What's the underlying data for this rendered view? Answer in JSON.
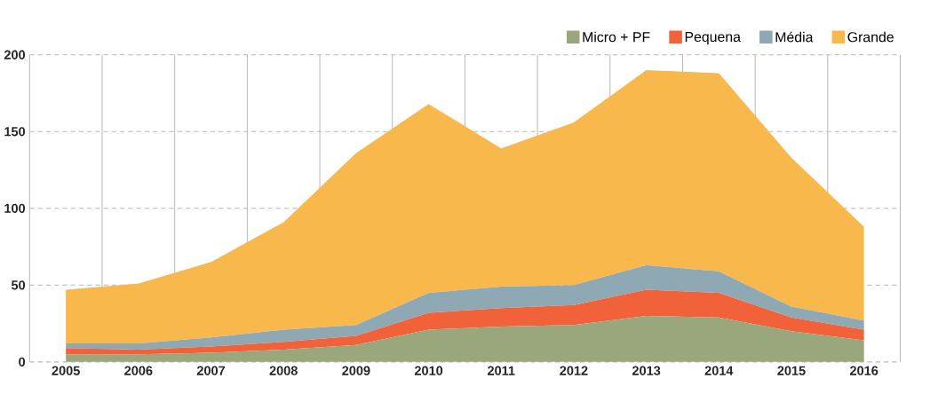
{
  "chart_data": {
    "type": "area",
    "stacked": true,
    "categories": [
      "2005",
      "2006",
      "2007",
      "2008",
      "2009",
      "2010",
      "2011",
      "2012",
      "2013",
      "2014",
      "2015",
      "2016"
    ],
    "series": [
      {
        "name": "Micro + PF",
        "color": "#9aa67c",
        "values": [
          5,
          5,
          6,
          8,
          11,
          21,
          23,
          24,
          30,
          29,
          20,
          14
        ]
      },
      {
        "name": "Pequena",
        "color": "#f2623a",
        "values": [
          4,
          3,
          4,
          5,
          6,
          11,
          12,
          13,
          17,
          16,
          9,
          7
        ]
      },
      {
        "name": "Média",
        "color": "#8fa9b4",
        "values": [
          3,
          4,
          6,
          8,
          7,
          13,
          14,
          13,
          16,
          14,
          7,
          6
        ]
      },
      {
        "name": "Grande",
        "color": "#f9b84b",
        "values": [
          35,
          39,
          49,
          70,
          112,
          123,
          90,
          106,
          127,
          129,
          97,
          61
        ]
      }
    ],
    "ylim": [
      0,
      200
    ],
    "yticks": [
      0,
      50,
      100,
      150,
      200
    ],
    "grid": true,
    "legend": "top right"
  }
}
